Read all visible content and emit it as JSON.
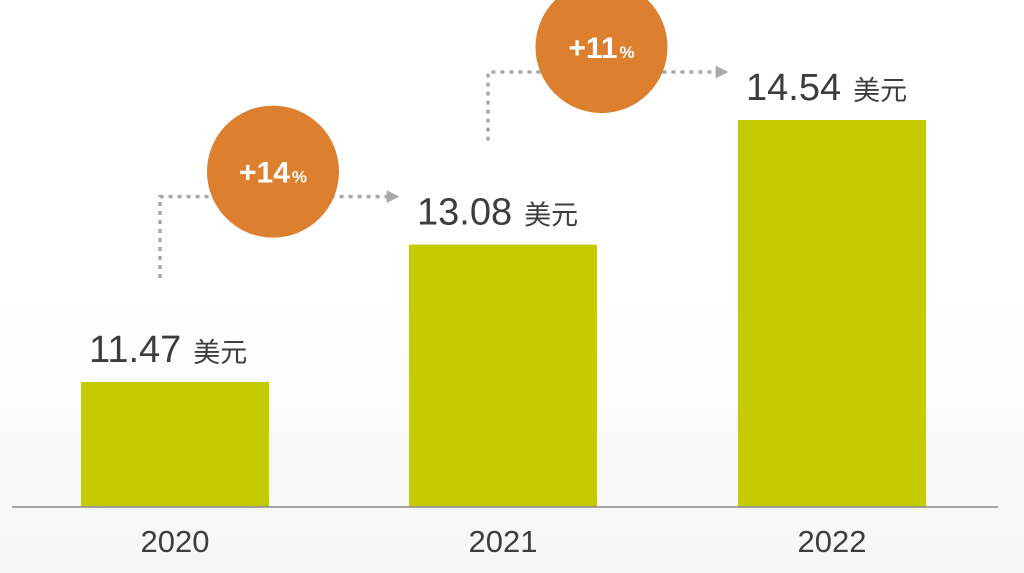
{
  "chart_data": {
    "type": "bar",
    "categories": [
      "2020",
      "2021",
      "2022"
    ],
    "values": [
      11.47,
      13.08,
      14.54
    ],
    "value_labels": [
      "11.47",
      "13.08",
      "14.54"
    ],
    "unit": "美元",
    "growth": [
      {
        "from": "2020",
        "to": "2021",
        "number": "+14",
        "suffix": "%"
      },
      {
        "from": "2021",
        "to": "2022",
        "number": "+11",
        "suffix": "%"
      }
    ],
    "grid": false,
    "legend": "none"
  },
  "colors": {
    "bar": "#c4cc00",
    "bubble": "#dc7f2f",
    "bubble_text": "#ffffff",
    "label_text": "#3d3d3d",
    "axis": "#8c8c8c",
    "arrow": "#a8a8a8"
  }
}
